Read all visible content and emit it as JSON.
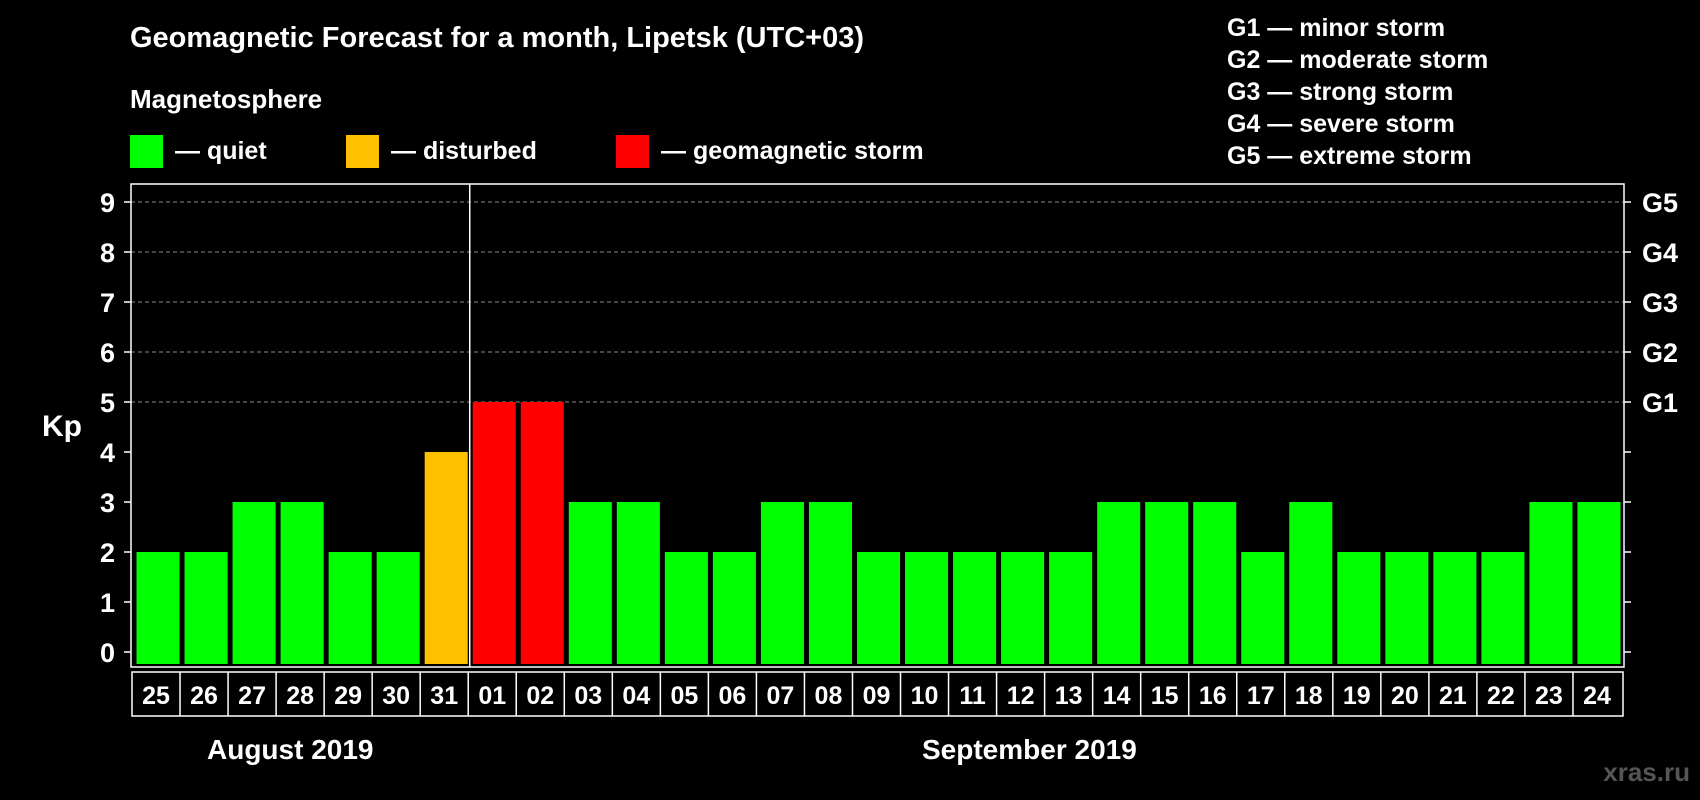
{
  "header": {
    "title": "Geomagnetic Forecast for a month, Lipetsk (UTC+03)",
    "subtitle": "Magnetosphere"
  },
  "legend": [
    {
      "label": "— quiet",
      "color": "#00ff00"
    },
    {
      "label": "— disturbed",
      "color": "#ffc000"
    },
    {
      "label": "— geomagnetic storm",
      "color": "#ff0000"
    }
  ],
  "storm_levels": [
    "G1 — minor storm",
    "G2 — moderate storm",
    "G3 — strong storm",
    "G4 — severe storm",
    "G5 — extreme storm"
  ],
  "months": [
    "August 2019",
    "September 2019"
  ],
  "watermark": "xras.ru",
  "chart_data": {
    "type": "bar",
    "ylabel": "Kp",
    "ylim": [
      0,
      9
    ],
    "yticks": [
      "0",
      "1",
      "2",
      "3",
      "4",
      "5",
      "6",
      "7",
      "8",
      "9"
    ],
    "right_axis_labels": [
      {
        "value": 5,
        "label": "G1"
      },
      {
        "value": 6,
        "label": "G2"
      },
      {
        "value": 7,
        "label": "G3"
      },
      {
        "value": 8,
        "label": "G4"
      },
      {
        "value": 9,
        "label": "G5"
      }
    ],
    "grid": "dashed horizontal lines at 5-9",
    "categories": [
      "25",
      "26",
      "27",
      "28",
      "29",
      "30",
      "31",
      "01",
      "02",
      "03",
      "04",
      "05",
      "06",
      "07",
      "08",
      "09",
      "10",
      "11",
      "12",
      "13",
      "14",
      "15",
      "16",
      "17",
      "18",
      "19",
      "20",
      "21",
      "22",
      "23",
      "24"
    ],
    "values": [
      2,
      2,
      3,
      3,
      2,
      2,
      4,
      5,
      5,
      3,
      3,
      2,
      2,
      3,
      3,
      2,
      2,
      2,
      2,
      2,
      3,
      3,
      3,
      2,
      3,
      2,
      2,
      2,
      2,
      3,
      3
    ],
    "colors": {
      "quiet": "#00ff00",
      "disturbed": "#ffc000",
      "storm": "#ff0000"
    }
  }
}
